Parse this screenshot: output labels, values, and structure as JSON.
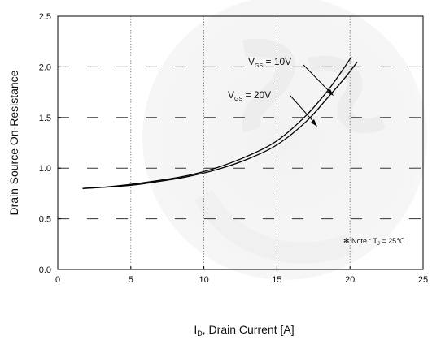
{
  "chart_data": {
    "type": "line",
    "xlabel": {
      "main": "I",
      "sub": "D",
      "rest": ", Drain Current [A]"
    },
    "ylabel": "Drain-Source On-Resistance",
    "xlim": [
      0,
      25
    ],
    "ylim": [
      0.0,
      2.5
    ],
    "x_ticks": [
      "0",
      "5",
      "10",
      "15",
      "20",
      "25"
    ],
    "y_ticks": [
      "0.0",
      "0.5",
      "1.0",
      "1.5",
      "2.0",
      "2.5"
    ],
    "grid": {
      "vertical": "dotted",
      "horizontal": "dashed"
    },
    "series": [
      {
        "name": "VGS = 10V",
        "x": [
          1.7,
          3,
          5,
          7,
          9,
          11,
          13,
          15,
          17,
          18.5,
          19.5,
          20.1
        ],
        "y": [
          0.8,
          0.81,
          0.84,
          0.88,
          0.93,
          1.01,
          1.12,
          1.27,
          1.52,
          1.77,
          1.97,
          2.1
        ]
      },
      {
        "name": "VGS = 20V",
        "x": [
          1.7,
          3,
          5,
          7,
          9,
          11,
          13,
          15,
          17,
          18.5,
          19.7,
          20.5
        ],
        "y": [
          0.8,
          0.81,
          0.83,
          0.87,
          0.92,
          0.99,
          1.09,
          1.23,
          1.46,
          1.7,
          1.9,
          2.05
        ]
      }
    ],
    "annotations": [
      {
        "label": "V",
        "sub": "GS",
        "value": " = 10V"
      },
      {
        "label": "V",
        "sub": "GS",
        "value": " = 20V"
      }
    ],
    "note": {
      "prefix": "✻ Note : T",
      "sub": "J",
      "value": " = 25℃"
    }
  }
}
